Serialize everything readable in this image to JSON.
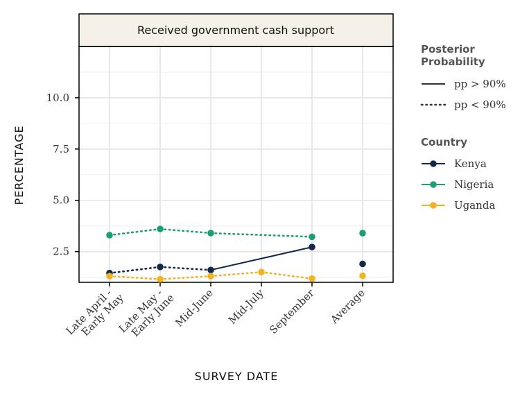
{
  "chart_data": {
    "type": "line",
    "panel_title": "Received government cash support",
    "xlabel": "SURVEY DATE",
    "ylabel": "PERCENTAGE",
    "categories": [
      "Late April -\nEarly May",
      "Late May -\nEarly June",
      "Mid-June",
      "Mid-July",
      "September",
      "Average"
    ],
    "ylim": [
      1.0,
      12.5
    ],
    "yticks": [
      2.5,
      5.0,
      7.5,
      10.0
    ],
    "ytick_labels": [
      "2.5",
      "5.0",
      "7.5",
      "10.0"
    ],
    "grid": true,
    "legend_placement": "right",
    "legend_linetype": {
      "title": "Posterior\nProbability",
      "items": [
        {
          "label": "pp > 90%",
          "style": "solid"
        },
        {
          "label": "pp < 90%",
          "style": "dotted"
        }
      ]
    },
    "legend_color_title": "Country",
    "series": [
      {
        "name": "Kenya",
        "color": "#14294a",
        "values": [
          1.45,
          1.75,
          1.6,
          null,
          2.72,
          1.9
        ],
        "segment_styles": [
          "dotted",
          "dotted",
          "solid"
        ]
      },
      {
        "name": "Nigeria",
        "color": "#1a9e77",
        "values": [
          3.3,
          3.6,
          3.4,
          null,
          3.22,
          3.4
        ],
        "segment_styles": [
          "dotted",
          "dotted",
          "dotted"
        ]
      },
      {
        "name": "Uganda",
        "color": "#f0b323",
        "values": [
          1.3,
          1.15,
          1.3,
          1.5,
          1.18,
          1.32
        ],
        "segment_styles": [
          "dotted",
          "dotted",
          "dotted",
          "dotted"
        ]
      }
    ]
  }
}
